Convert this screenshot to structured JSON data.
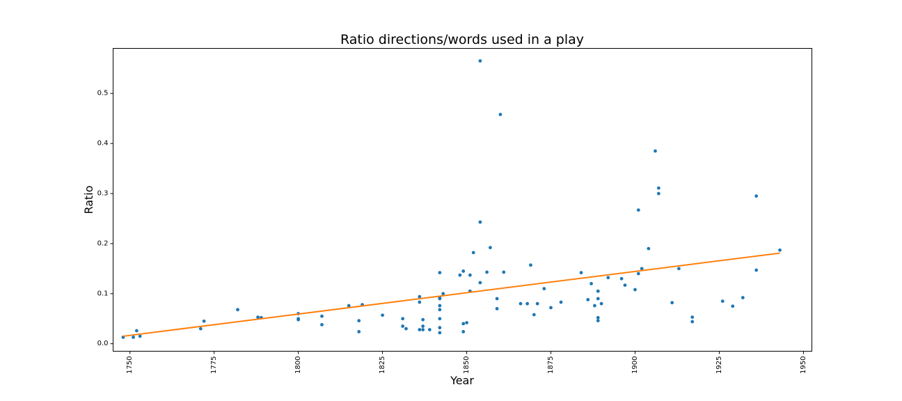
{
  "chart_data": {
    "type": "scatter",
    "title": "Ratio directions/words used in a play",
    "xlabel": "Year",
    "ylabel": "Ratio",
    "xlim": [
      1745,
      1952.5
    ],
    "ylim": [
      -0.015,
      0.59
    ],
    "xticks": [
      1750,
      1775,
      1800,
      1825,
      1850,
      1875,
      1900,
      1925,
      1950
    ],
    "yticks": [
      0.0,
      0.1,
      0.2,
      0.3,
      0.4,
      0.5
    ],
    "xtick_labels": [
      "1750",
      "1775",
      "1800",
      "1825",
      "1850",
      "1875",
      "1900",
      "1925",
      "1950"
    ],
    "ytick_labels": [
      "0.0",
      "0.1",
      "0.2",
      "0.3",
      "0.4",
      "0.5"
    ],
    "grid": false,
    "colors": {
      "points": "#1f77b4",
      "trend": "#ff7f0e"
    },
    "series": [
      {
        "type": "scatter",
        "x": [
          1748,
          1751,
          1752,
          1753,
          1771,
          1772,
          1782,
          1788,
          1789,
          1800,
          1800,
          1800,
          1807,
          1807,
          1815,
          1818,
          1818,
          1819,
          1825,
          1831,
          1831,
          1832,
          1836,
          1836,
          1836,
          1837,
          1837,
          1837,
          1839,
          1842,
          1842,
          1842,
          1842,
          1842,
          1842,
          1842,
          1842,
          1843,
          1848,
          1849,
          1849,
          1849,
          1850,
          1851,
          1851,
          1852,
          1854,
          1854,
          1854,
          1856,
          1857,
          1859,
          1859,
          1860,
          1861,
          1866,
          1868,
          1869,
          1870,
          1871,
          1873,
          1875,
          1878,
          1884,
          1886,
          1887,
          1888,
          1889,
          1889,
          1889,
          1889,
          1889,
          1890,
          1892,
          1896,
          1897,
          1900,
          1901,
          1901,
          1902,
          1904,
          1906,
          1907,
          1907,
          1911,
          1913,
          1917,
          1917,
          1926,
          1929,
          1932,
          1936,
          1936,
          1943
        ],
        "y": [
          0.013,
          0.013,
          0.026,
          0.015,
          0.03,
          0.045,
          0.068,
          0.053,
          0.052,
          0.06,
          0.05,
          0.048,
          0.055,
          0.038,
          0.076,
          0.046,
          0.024,
          0.078,
          0.057,
          0.05,
          0.035,
          0.03,
          0.094,
          0.083,
          0.028,
          0.048,
          0.035,
          0.028,
          0.028,
          0.142,
          0.092,
          0.076,
          0.068,
          0.05,
          0.032,
          0.022,
          0.09,
          0.1,
          0.137,
          0.145,
          0.024,
          0.04,
          0.042,
          0.137,
          0.105,
          0.182,
          0.565,
          0.243,
          0.122,
          0.143,
          0.192,
          0.09,
          0.07,
          0.458,
          0.143,
          0.08,
          0.08,
          0.157,
          0.058,
          0.08,
          0.11,
          0.072,
          0.083,
          0.142,
          0.088,
          0.12,
          0.076,
          0.105,
          0.09,
          0.052,
          0.046,
          0.105,
          0.08,
          0.132,
          0.13,
          0.117,
          0.108,
          0.267,
          0.14,
          0.15,
          0.19,
          0.385,
          0.311,
          0.3,
          0.082,
          0.15,
          0.053,
          0.044,
          0.085,
          0.075,
          0.092,
          0.295,
          0.147,
          0.187
        ]
      },
      {
        "type": "line",
        "x": [
          1748,
          1943
        ],
        "y": [
          0.015,
          0.181
        ]
      }
    ]
  }
}
